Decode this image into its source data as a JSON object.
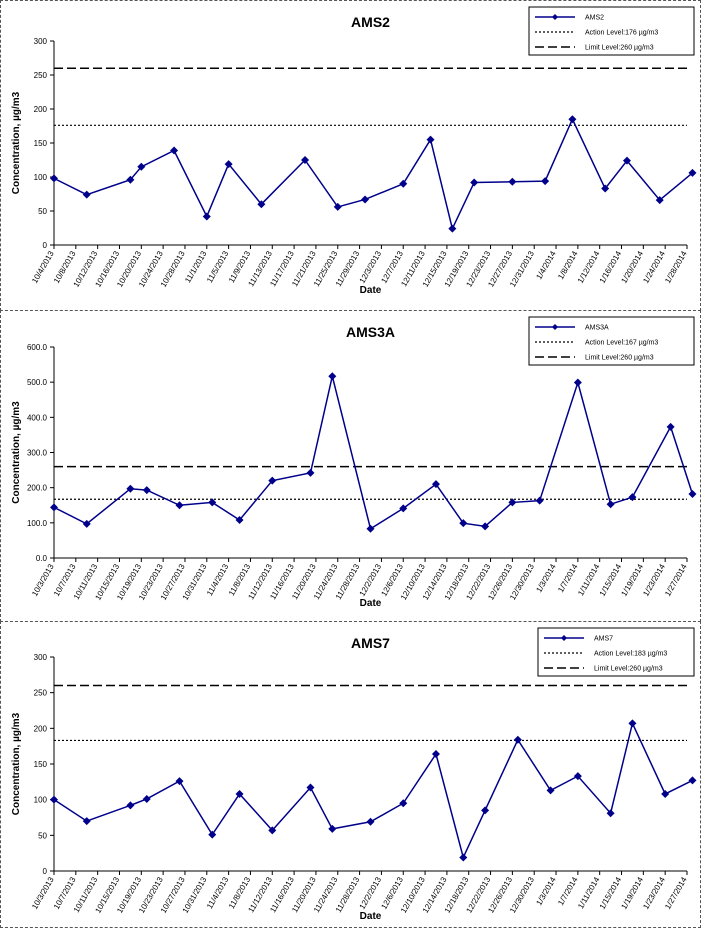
{
  "colors": {
    "series": "#00008B",
    "reference": "#000000"
  },
  "chart_data": [
    {
      "type": "line",
      "title": "AMS2",
      "xlabel": "Date",
      "ylabel": "Concentration, µg/m3",
      "ylim": [
        0,
        300
      ],
      "yticks": [
        "0",
        "50",
        "100",
        "150",
        "200",
        "250",
        "300"
      ],
      "xtick_labels": [
        "10/4/2013",
        "10/8/2013",
        "10/12/2013",
        "10/16/2013",
        "10/20/2013",
        "10/24/2013",
        "10/28/2013",
        "11/1/2013",
        "11/5/2013",
        "11/9/2013",
        "11/13/2013",
        "11/17/2013",
        "11/21/2013",
        "11/25/2013",
        "11/29/2013",
        "12/3/2013",
        "12/7/2013",
        "12/11/2013",
        "12/15/2013",
        "12/19/2013",
        "12/23/2013",
        "12/27/2013",
        "12/31/2013",
        "1/4/2014",
        "1/8/2014",
        "1/12/2014",
        "1/16/2014",
        "1/20/2014",
        "1/24/2014",
        "1/28/2014"
      ],
      "x_start": "2013-10-04",
      "x_end": "2014-01-28",
      "series": [
        {
          "name": "AMS2",
          "points": [
            [
              "2013-10-04",
              98
            ],
            [
              "2013-10-10",
              74
            ],
            [
              "2013-10-18",
              96
            ],
            [
              "2013-10-20",
              115
            ],
            [
              "2013-10-26",
              139
            ],
            [
              "2013-11-01",
              42
            ],
            [
              "2013-11-05",
              119
            ],
            [
              "2013-11-11",
              60
            ],
            [
              "2013-11-19",
              125
            ],
            [
              "2013-11-25",
              56
            ],
            [
              "2013-11-30",
              67
            ],
            [
              "2013-12-07",
              90
            ],
            [
              "2013-12-12",
              155
            ],
            [
              "2013-12-16",
              24
            ],
            [
              "2013-12-20",
              92
            ],
            [
              "2013-12-27",
              93
            ],
            [
              "2014-01-02",
              94
            ],
            [
              "2014-01-07",
              185
            ],
            [
              "2014-01-13",
              83
            ],
            [
              "2014-01-17",
              124
            ],
            [
              "2014-01-23",
              66
            ],
            [
              "2014-01-29",
              106
            ]
          ]
        }
      ],
      "reference_lines": [
        {
          "name": "Action Level:176 µg/m3",
          "value": 176,
          "style": "dotted"
        },
        {
          "name": "Limit Level:260 µg/m3",
          "value": 260,
          "style": "dashed"
        }
      ],
      "legend_placement": "top-right",
      "grid": false
    },
    {
      "type": "line",
      "title": "AMS3A",
      "xlabel": "Date",
      "ylabel": "Concentration, µg/m3",
      "ylim": [
        0,
        600
      ],
      "yticks": [
        "0.0",
        "100.0",
        "200.0",
        "300.0",
        "400.0",
        "500.0",
        "600.0"
      ],
      "xtick_labels": [
        "10/3/2013",
        "10/7/2013",
        "10/11/2013",
        "10/15/2013",
        "10/19/2013",
        "10/23/2013",
        "10/27/2013",
        "10/31/2013",
        "11/4/2013",
        "11/8/2013",
        "11/12/2013",
        "11/16/2013",
        "11/20/2013",
        "11/24/2013",
        "11/28/2013",
        "12/2/2013",
        "12/6/2013",
        "12/10/2013",
        "12/14/2013",
        "12/18/2013",
        "12/22/2013",
        "12/26/2013",
        "12/30/2013",
        "1/3/2014",
        "1/7/2014",
        "1/11/2014",
        "1/15/2014",
        "1/19/2014",
        "1/23/2014",
        "1/27/2014"
      ],
      "x_start": "2013-10-03",
      "x_end": "2014-01-27",
      "series": [
        {
          "name": "AMS3A",
          "points": [
            [
              "2013-10-03",
              144
            ],
            [
              "2013-10-09",
              97
            ],
            [
              "2013-10-17",
              197
            ],
            [
              "2013-10-20",
              193
            ],
            [
              "2013-10-26",
              150
            ],
            [
              "2013-11-01",
              158
            ],
            [
              "2013-11-06",
              108
            ],
            [
              "2013-11-12",
              220
            ],
            [
              "2013-11-19",
              242
            ],
            [
              "2013-11-23",
              517
            ],
            [
              "2013-11-30",
              83
            ],
            [
              "2013-12-06",
              141
            ],
            [
              "2013-12-12",
              210
            ],
            [
              "2013-12-17",
              99
            ],
            [
              "2013-12-21",
              90
            ],
            [
              "2013-12-26",
              158
            ],
            [
              "2013-12-31",
              163
            ],
            [
              "2014-01-07",
              499
            ],
            [
              "2014-01-13",
              153
            ],
            [
              "2014-01-17",
              173
            ],
            [
              "2014-01-24",
              373
            ],
            [
              "2014-01-28",
              182
            ]
          ]
        }
      ],
      "reference_lines": [
        {
          "name": "Action Level:167 µg/m3",
          "value": 167,
          "style": "dotted"
        },
        {
          "name": "Limit Level:260 µg/m3",
          "value": 260,
          "style": "dashed"
        }
      ],
      "legend_placement": "top-right",
      "grid": false
    },
    {
      "type": "line",
      "title": "AMS7",
      "xlabel": "Date",
      "ylabel": "Concentration, µg/m3",
      "ylim": [
        0,
        300
      ],
      "yticks": [
        "0",
        "50",
        "100",
        "150",
        "200",
        "250",
        "300"
      ],
      "xtick_labels": [
        "10/3/2013",
        "10/7/2013",
        "10/11/2013",
        "10/15/2013",
        "10/19/2013",
        "10/23/2013",
        "10/27/2013",
        "10/31/2013",
        "11/4/2013",
        "11/8/2013",
        "11/12/2013",
        "11/16/2013",
        "11/20/2013",
        "11/24/2013",
        "11/28/2013",
        "12/2/2013",
        "12/6/2013",
        "12/10/2013",
        "12/14/2013",
        "12/18/2013",
        "12/22/2013",
        "12/26/2013",
        "12/30/2013",
        "1/3/2014",
        "1/7/2014",
        "1/11/2014",
        "1/15/2014",
        "1/19/2014",
        "1/23/2014",
        "1/27/2014"
      ],
      "x_start": "2013-10-03",
      "x_end": "2014-01-27",
      "series": [
        {
          "name": "AMS7",
          "points": [
            [
              "2013-10-03",
              100
            ],
            [
              "2013-10-09",
              70
            ],
            [
              "2013-10-17",
              92
            ],
            [
              "2013-10-20",
              101
            ],
            [
              "2013-10-26",
              126
            ],
            [
              "2013-11-01",
              51
            ],
            [
              "2013-11-06",
              108
            ],
            [
              "2013-11-12",
              57
            ],
            [
              "2013-11-19",
              117
            ],
            [
              "2013-11-23",
              59
            ],
            [
              "2013-11-30",
              69
            ],
            [
              "2013-12-06",
              95
            ],
            [
              "2013-12-12",
              164
            ],
            [
              "2013-12-17",
              19
            ],
            [
              "2013-12-21",
              85
            ],
            [
              "2013-12-27",
              184
            ],
            [
              "2014-01-02",
              113
            ],
            [
              "2014-01-07",
              133
            ],
            [
              "2014-01-13",
              81
            ],
            [
              "2014-01-17",
              207
            ],
            [
              "2014-01-23",
              108
            ],
            [
              "2014-01-28",
              127
            ]
          ]
        }
      ],
      "reference_lines": [
        {
          "name": "Action Level:183 µg/m3",
          "value": 183,
          "style": "dotted"
        },
        {
          "name": "Limit Level:260 µg/m3",
          "value": 260,
          "style": "dashed"
        }
      ],
      "legend_placement": "top-right",
      "grid": false
    }
  ]
}
